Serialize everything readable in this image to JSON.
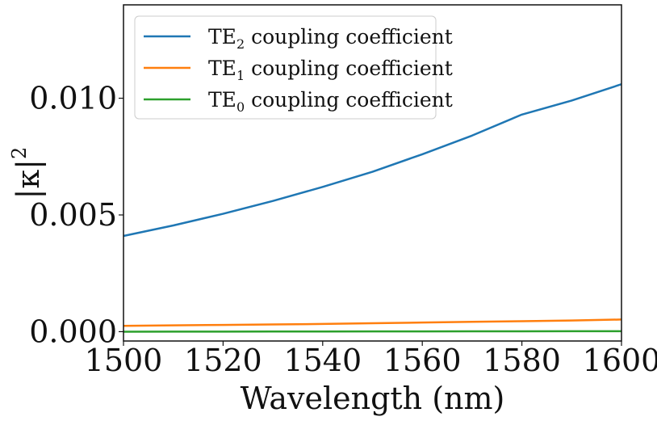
{
  "chart_data": {
    "type": "line",
    "title": "",
    "xlabel": "Wavelength (nm)",
    "ylabel_symbol": "|κ|",
    "ylabel_exponent": "2",
    "xlim": [
      1500,
      1600
    ],
    "ylim": [
      -0.0004,
      0.014
    ],
    "xticks": [
      1500,
      1520,
      1540,
      1560,
      1580,
      1600
    ],
    "xtick_labels": [
      "1500",
      "1520",
      "1540",
      "1560",
      "1580",
      "1600"
    ],
    "yticks": [
      0.0,
      0.005,
      0.01
    ],
    "ytick_labels": [
      "0.000",
      "0.005",
      "0.010"
    ],
    "grid": false,
    "legend_position": "top-left",
    "x": [
      1500,
      1510,
      1520,
      1530,
      1540,
      1550,
      1560,
      1570,
      1580,
      1590,
      1600
    ],
    "series": [
      {
        "name": "TE2 coupling coefficient",
        "legend_main": "TE",
        "legend_sub": "2",
        "legend_rest": " coupling coefficient",
        "color": "#1f77b4",
        "values": [
          0.0041,
          0.00455,
          0.00505,
          0.0056,
          0.0062,
          0.00685,
          0.0076,
          0.0084,
          0.0093,
          0.0099,
          0.0106
        ]
      },
      {
        "name": "TE1 coupling coefficient",
        "legend_main": "TE",
        "legend_sub": "1",
        "legend_rest": " coupling coefficient",
        "color": "#ff7f0e",
        "values": [
          0.00025,
          0.00027,
          0.00029,
          0.00031,
          0.00033,
          0.00036,
          0.00039,
          0.00042,
          0.00045,
          0.00048,
          0.00052
        ]
      },
      {
        "name": "TE0 coupling coefficient",
        "legend_main": "TE",
        "legend_sub": "0",
        "legend_rest": " coupling coefficient",
        "color": "#2ca02c",
        "values": [
          0.0,
          2e-06,
          4e-06,
          6e-06,
          8e-06,
          1e-05,
          1.2e-05,
          1.4e-05,
          1.6e-05,
          1.8e-05,
          2e-05
        ]
      }
    ]
  }
}
